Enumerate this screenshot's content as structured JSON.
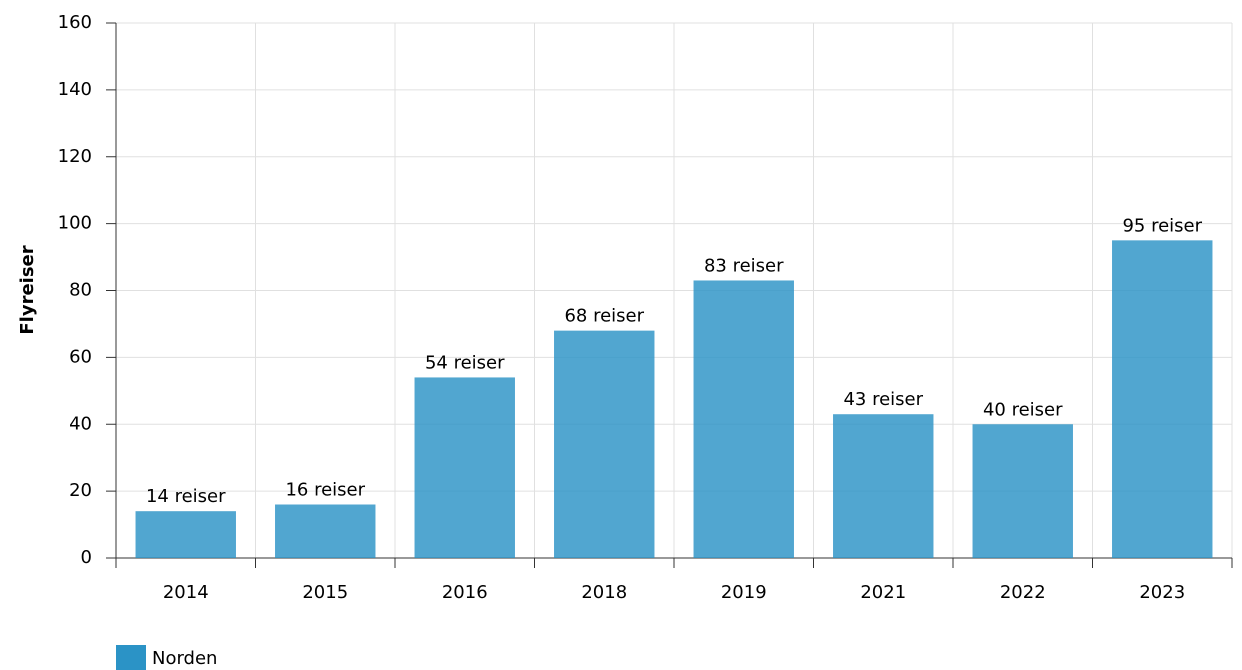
{
  "chart_data": {
    "type": "bar",
    "y_label": "Flyreiser",
    "categories": [
      "2014",
      "2015",
      "2016",
      "2018",
      "2019",
      "2021",
      "2022",
      "2023"
    ],
    "series": [
      {
        "name": "Norden",
        "color": "#2b93c6",
        "values": [
          14,
          16,
          54,
          68,
          83,
          43,
          40,
          95
        ],
        "value_labels": [
          "14 reiser",
          "16 reiser",
          "54 reiser",
          "68 reiser",
          "83 reiser",
          "43 reiser",
          "40 reiser",
          "95 reiser"
        ]
      }
    ],
    "ylim": [
      0,
      160
    ],
    "yticks": [
      0,
      20,
      40,
      60,
      80,
      100,
      120,
      140,
      160
    ],
    "grid": true,
    "legend": "bottom-left"
  }
}
